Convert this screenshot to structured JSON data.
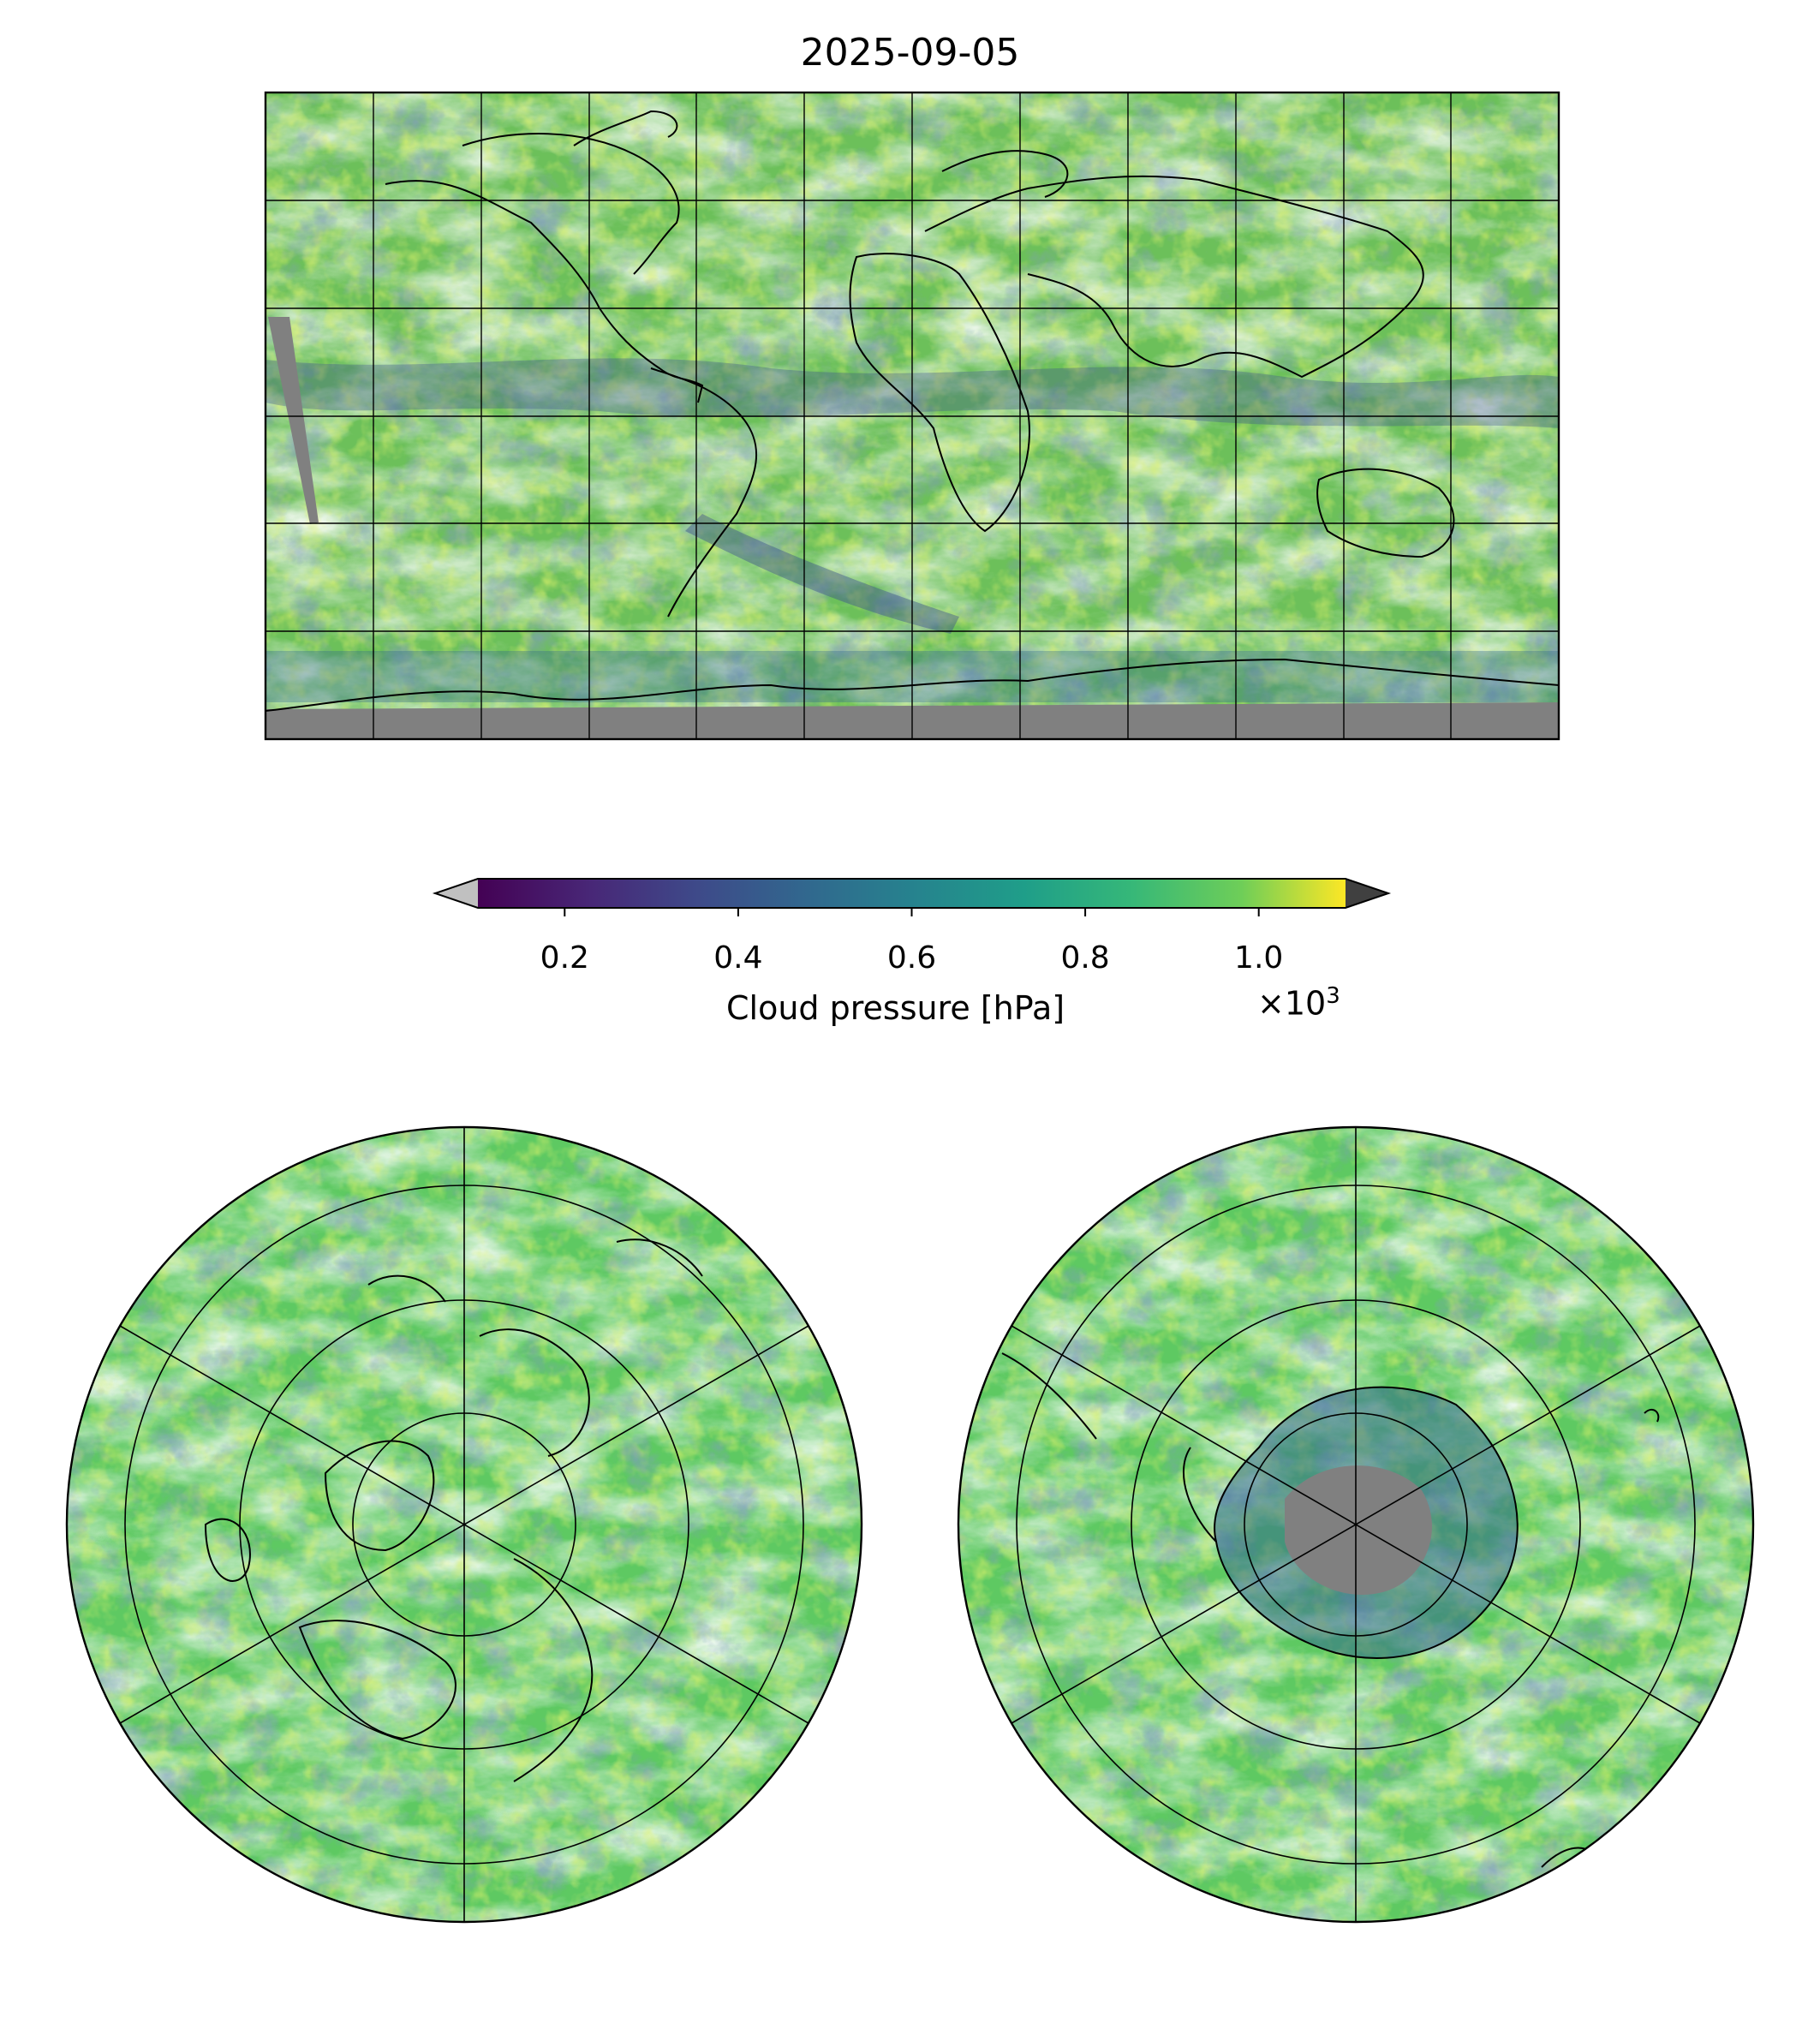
{
  "figure": {
    "title": "2025-09-05"
  },
  "panels": [
    {
      "name": "global",
      "projection": "Plate Carree",
      "extent": "global",
      "gridlines": true,
      "missing_data_color": "#808080"
    },
    {
      "name": "north-polar",
      "projection": "North Polar Stereographic",
      "gridlines": true
    },
    {
      "name": "south-polar",
      "projection": "South Polar Stereographic",
      "gridlines": true,
      "missing_data_color": "#808080"
    }
  ],
  "colorbar": {
    "label": "Cloud pressure [hPa]",
    "multiplier": "×10",
    "exponent": "3",
    "ticks": [
      "0.2",
      "0.4",
      "0.6",
      "0.8",
      "1.0"
    ],
    "tick_values": [
      0.2,
      0.4,
      0.6,
      0.8,
      1.0
    ],
    "range": [
      0.1,
      1.1
    ],
    "colormap": "viridis",
    "colors": [
      "#440154",
      "#3b528b",
      "#21918c",
      "#5ec962",
      "#fde725"
    ],
    "extend": "both",
    "under_color": "#c0c0c0",
    "over_color": "#404040"
  },
  "chart_data": {
    "type": "heatmap",
    "title": "2025-09-05",
    "variable": "Cloud pressure",
    "units": "hPa",
    "value_range": [
      100,
      1100
    ]
  }
}
